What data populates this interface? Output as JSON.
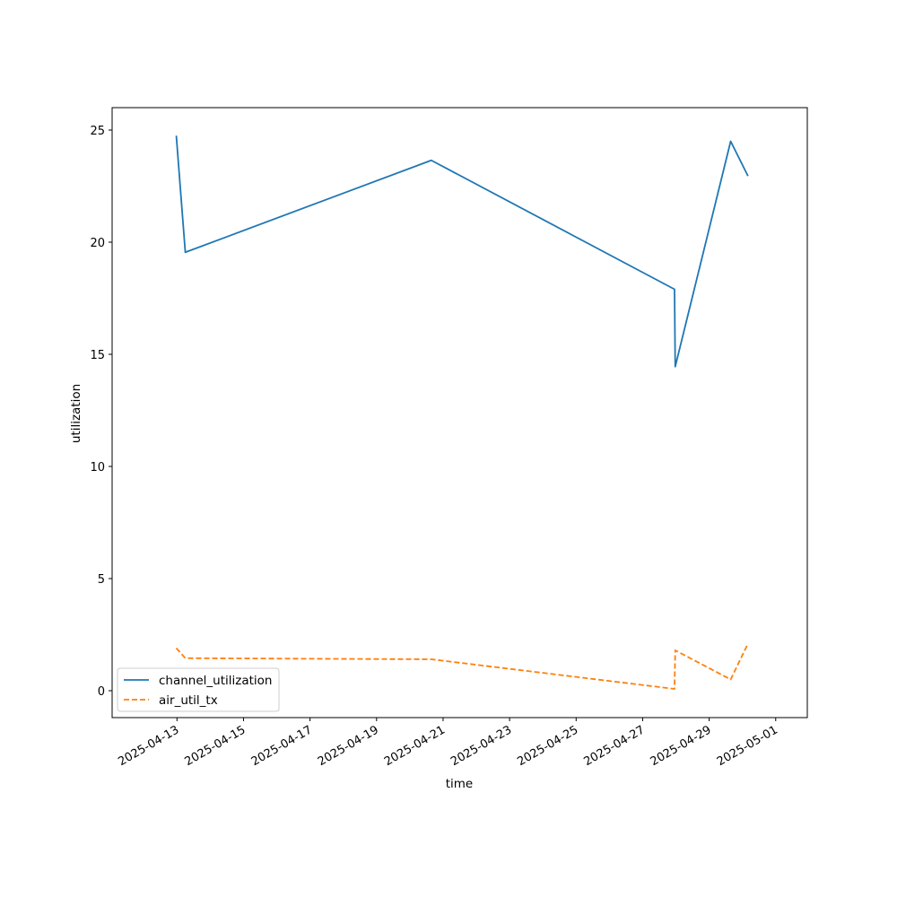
{
  "chart_data": {
    "type": "line",
    "xlabel": "time",
    "ylabel": "utilization",
    "x_type": "date",
    "xlim": [
      "2025-04-12",
      "2025-05-01"
    ],
    "ylim": [
      -1.2,
      26
    ],
    "x_ticks": [
      "2025-04-13",
      "2025-04-15",
      "2025-04-17",
      "2025-04-19",
      "2025-04-21",
      "2025-04-23",
      "2025-04-25",
      "2025-04-27",
      "2025-04-29",
      "2025-05-01"
    ],
    "y_ticks": [
      0,
      5,
      10,
      15,
      20,
      25
    ],
    "grid": false,
    "legend_position": "lower-left",
    "series": [
      {
        "name": "channel_utilization",
        "color": "#1f77b4",
        "style": "solid",
        "points": [
          {
            "x": "2025-04-12 23:30",
            "y": 24.75
          },
          {
            "x": "2025-04-13 06:00",
            "y": 19.55
          },
          {
            "x": "2025-04-20 15:30",
            "y": 23.65
          },
          {
            "x": "2025-04-27 23:00",
            "y": 17.9
          },
          {
            "x": "2025-04-27 23:30",
            "y": 14.45
          },
          {
            "x": "2025-04-29 15:30",
            "y": 24.5
          },
          {
            "x": "2025-04-30 04:00",
            "y": 22.95
          }
        ]
      },
      {
        "name": "air_util_tx",
        "color": "#ff7f0e",
        "style": "dashed",
        "points": [
          {
            "x": "2025-04-12 23:30",
            "y": 1.9
          },
          {
            "x": "2025-04-13 06:00",
            "y": 1.45
          },
          {
            "x": "2025-04-20 15:30",
            "y": 1.4
          },
          {
            "x": "2025-04-27 23:00",
            "y": 0.08
          },
          {
            "x": "2025-04-27 23:30",
            "y": 1.8
          },
          {
            "x": "2025-04-29 15:30",
            "y": 0.5
          },
          {
            "x": "2025-04-30 04:00",
            "y": 2.1
          }
        ]
      }
    ]
  }
}
